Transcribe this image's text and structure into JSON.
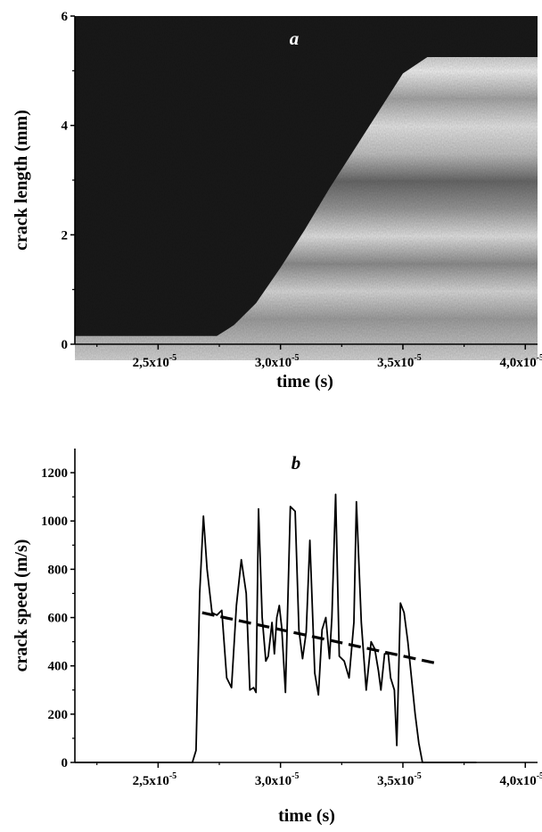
{
  "chart_data": [
    {
      "panel_label": "a",
      "type": "heatmap",
      "xlabel": "time (s)",
      "ylabel": "crack length (mm)",
      "xlim": [
        2.16e-05,
        4.05e-05
      ],
      "ylim": [
        0,
        6
      ],
      "x_ticks": [
        2.5e-05,
        3e-05,
        3.5e-05,
        4e-05
      ],
      "y_ticks": [
        0,
        2,
        4,
        6
      ],
      "x_tick_labels": [
        {
          "mantissa": "2,5x10",
          "exponent": "-5"
        },
        {
          "mantissa": "3,0x10",
          "exponent": "-5"
        },
        {
          "mantissa": "3,5x10",
          "exponent": "-5"
        },
        {
          "mantissa": "4,0x10",
          "exponent": "-5"
        }
      ],
      "y_tick_labels": [
        "0",
        "2",
        "4",
        "6"
      ],
      "crack_front": {
        "x": [
          2.16e-05,
          2.74e-05,
          2.81e-05,
          2.9e-05,
          3e-05,
          3.1e-05,
          3.2e-05,
          3.3e-05,
          3.4e-05,
          3.5e-05,
          3.6e-05,
          4.05e-05
        ],
        "y": [
          0.15,
          0.15,
          0.35,
          0.75,
          1.4,
          2.1,
          2.85,
          3.55,
          4.25,
          4.95,
          5.25,
          5.25
        ]
      },
      "colors": {
        "dark": "#191919",
        "light": "#d8d8d8"
      }
    },
    {
      "panel_label": "b",
      "type": "line",
      "xlabel": "time (s)",
      "ylabel": "crack speed (m/s)",
      "xlim": [
        2.16e-05,
        4.05e-05
      ],
      "ylim": [
        0,
        1300
      ],
      "x_ticks": [
        2.5e-05,
        3e-05,
        3.5e-05,
        4e-05
      ],
      "y_ticks": [
        0,
        200,
        400,
        600,
        800,
        1000,
        1200
      ],
      "x_tick_labels": [
        {
          "mantissa": "2,5x10",
          "exponent": "-5"
        },
        {
          "mantissa": "3,0x10",
          "exponent": "-5"
        },
        {
          "mantissa": "3,5x10",
          "exponent": "-5"
        },
        {
          "mantissa": "4,0x10",
          "exponent": "-5"
        }
      ],
      "y_tick_labels": [
        "0",
        "200",
        "400",
        "600",
        "800",
        "1000",
        "1200"
      ],
      "series": [
        {
          "style": "solid",
          "x": [
            2.16e-05,
            2.64e-05,
            2.655e-05,
            2.67e-05,
            2.685e-05,
            2.7e-05,
            2.72e-05,
            2.74e-05,
            2.76e-05,
            2.78e-05,
            2.8e-05,
            2.82e-05,
            2.84e-05,
            2.86e-05,
            2.875e-05,
            2.89e-05,
            2.9e-05,
            2.91e-05,
            2.925e-05,
            2.94e-05,
            2.95e-05,
            2.965e-05,
            2.975e-05,
            2.985e-05,
            2.995e-05,
            3.005e-05,
            3.02e-05,
            3.04e-05,
            3.06e-05,
            3.075e-05,
            3.09e-05,
            3.105e-05,
            3.12e-05,
            3.14e-05,
            3.155e-05,
            3.17e-05,
            3.185e-05,
            3.2e-05,
            3.21e-05,
            3.225e-05,
            3.24e-05,
            3.26e-05,
            3.28e-05,
            3.3e-05,
            3.31e-05,
            3.33e-05,
            3.35e-05,
            3.37e-05,
            3.385e-05,
            3.4e-05,
            3.41e-05,
            3.425e-05,
            3.44e-05,
            3.45e-05,
            3.465e-05,
            3.475e-05,
            3.49e-05,
            3.505e-05,
            3.52e-05,
            3.535e-05,
            3.55e-05,
            3.565e-05,
            3.58e-05,
            3.6e-05,
            3.62e-05,
            3.64e-05,
            3.66e-05,
            3.68e-05,
            3.8e-05
          ],
          "y": [
            0,
            0,
            50,
            700,
            1020,
            800,
            620,
            610,
            630,
            350,
            310,
            650,
            840,
            700,
            300,
            310,
            290,
            1050,
            600,
            420,
            440,
            580,
            450,
            600,
            650,
            560,
            290,
            1060,
            1040,
            550,
            430,
            540,
            920,
            370,
            280,
            550,
            600,
            430,
            600,
            1110,
            440,
            420,
            350,
            580,
            1080,
            580,
            300,
            500,
            470,
            380,
            300,
            450,
            450,
            350,
            300,
            70,
            660,
            620,
            500,
            350,
            200,
            80,
            0,
            0,
            0,
            0,
            0,
            0,
            0
          ]
        },
        {
          "style": "dashed",
          "x": [
            2.68e-05,
            3.64e-05
          ],
          "y": [
            620,
            410
          ]
        }
      ]
    }
  ]
}
